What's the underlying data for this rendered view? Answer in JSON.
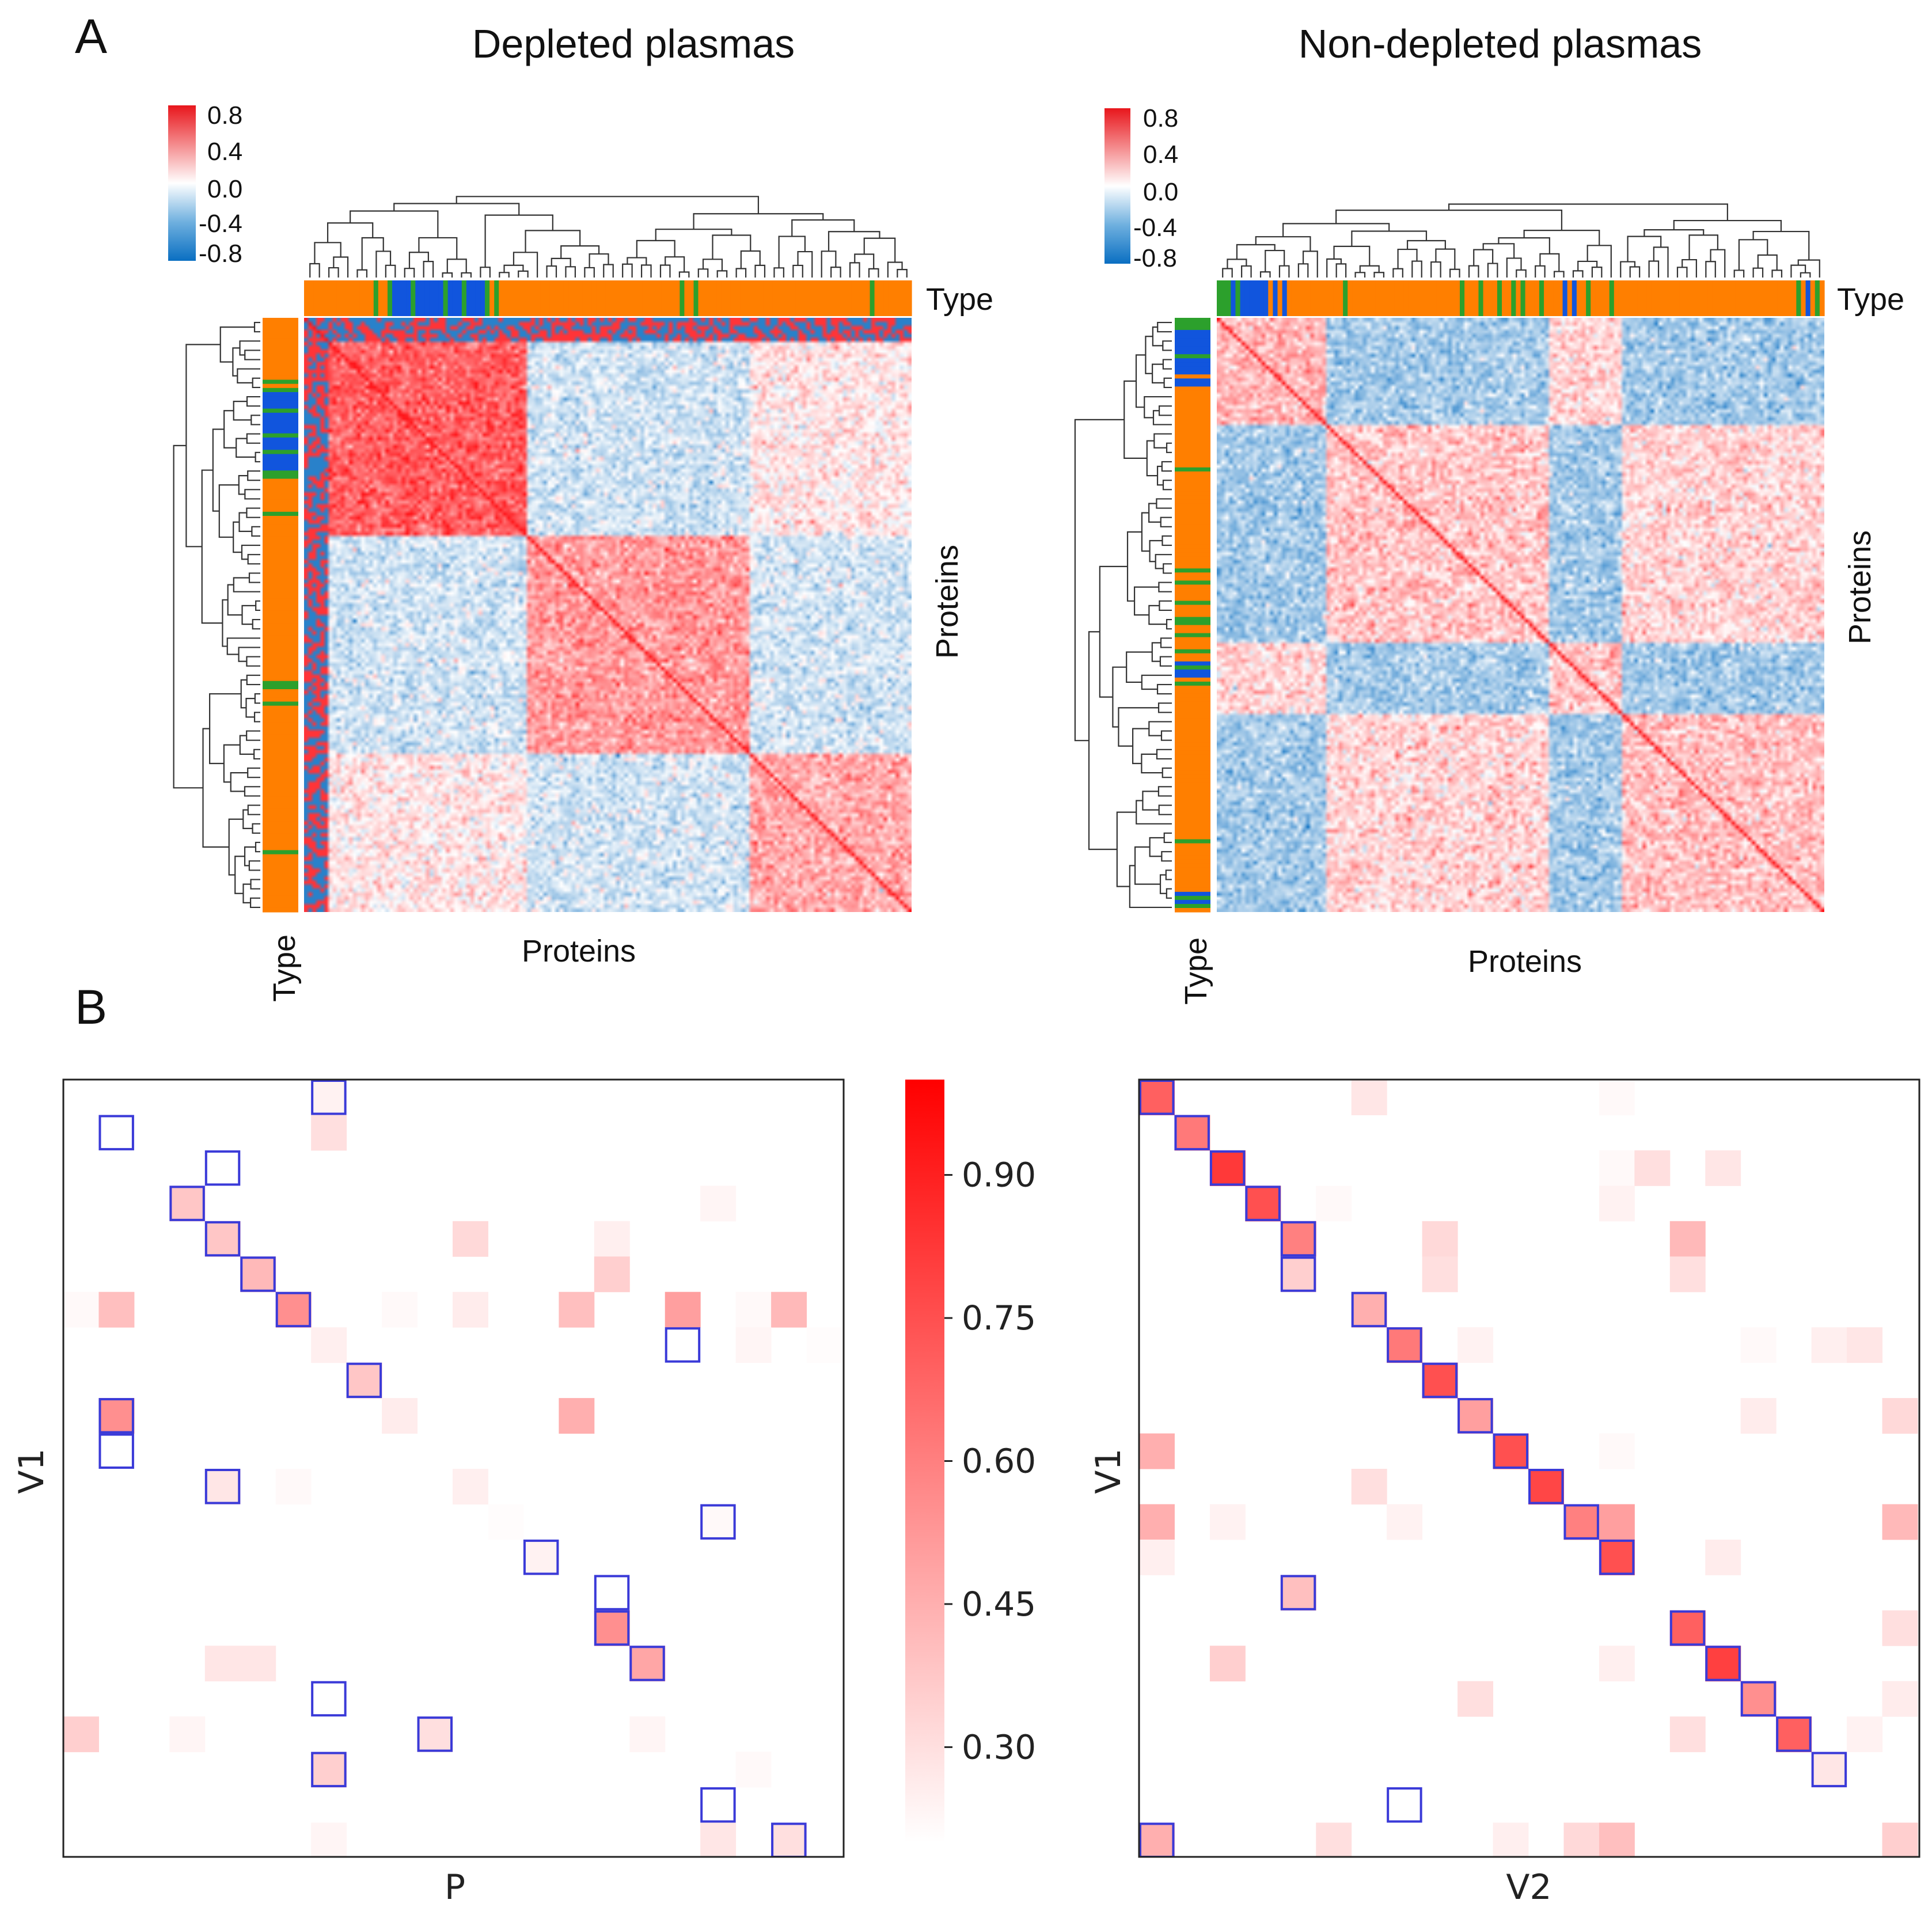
{
  "chart_data": [
    {
      "panel": "A",
      "type": "heatmap",
      "title": "Depleted plasmas",
      "xlabel": "Proteins",
      "ylabel": "Proteins",
      "annotation_label": "Type",
      "colorbar": {
        "min": -0.8,
        "max": 0.8,
        "ticks": [
          "0.8",
          "0.4",
          "0.0",
          "-0.4",
          "-0.8"
        ],
        "colors": [
          "#0a6fc2",
          "#ffffff",
          "#e8161c"
        ]
      },
      "type_colors": {
        "orange": "#ff7f00",
        "green": "#2ca02c",
        "blue": "#1155dd"
      },
      "n_proteins": 150,
      "clusters": [
        {
          "start": 0,
          "end": 55,
          "internal_corr": 0.55
        },
        {
          "start": 55,
          "end": 110,
          "internal_corr": 0.35
        },
        {
          "start": 110,
          "end": 150,
          "internal_corr": 0.3
        }
      ],
      "top_type_blocks": [
        {
          "type": "orange",
          "count": 15
        },
        {
          "type": "green",
          "count": 1
        },
        {
          "type": "orange",
          "count": 2
        },
        {
          "type": "green",
          "count": 1
        },
        {
          "type": "blue",
          "count": 4
        },
        {
          "type": "green",
          "count": 1
        },
        {
          "type": "blue",
          "count": 6
        },
        {
          "type": "green",
          "count": 1
        },
        {
          "type": "blue",
          "count": 3
        },
        {
          "type": "green",
          "count": 1
        },
        {
          "type": "blue",
          "count": 4
        },
        {
          "type": "green",
          "count": 1
        },
        {
          "type": "orange",
          "count": 1
        },
        {
          "type": "green",
          "count": 1
        },
        {
          "type": "orange",
          "count": 39
        },
        {
          "type": "green",
          "count": 1
        },
        {
          "type": "orange",
          "count": 2
        },
        {
          "type": "green",
          "count": 1
        },
        {
          "type": "orange",
          "count": 37
        },
        {
          "type": "green",
          "count": 1
        },
        {
          "type": "orange",
          "count": 8
        }
      ],
      "left_type_blocks": [
        {
          "type": "orange",
          "count": 15
        },
        {
          "type": "green",
          "count": 1
        },
        {
          "type": "orange",
          "count": 1
        },
        {
          "type": "green",
          "count": 1
        },
        {
          "type": "blue",
          "count": 4
        },
        {
          "type": "green",
          "count": 1
        },
        {
          "type": "blue",
          "count": 5
        },
        {
          "type": "green",
          "count": 1
        },
        {
          "type": "blue",
          "count": 3
        },
        {
          "type": "green",
          "count": 1
        },
        {
          "type": "blue",
          "count": 4
        },
        {
          "type": "green",
          "count": 2
        },
        {
          "type": "orange",
          "count": 8
        },
        {
          "type": "green",
          "count": 1
        },
        {
          "type": "orange",
          "count": 40
        },
        {
          "type": "green",
          "count": 2
        },
        {
          "type": "orange",
          "count": 3
        },
        {
          "type": "green",
          "count": 1
        },
        {
          "type": "orange",
          "count": 35
        },
        {
          "type": "green",
          "count": 1
        },
        {
          "type": "orange",
          "count": 14
        }
      ]
    },
    {
      "panel": "A",
      "type": "heatmap",
      "title": "Non-depleted plasmas",
      "xlabel": "Proteins",
      "ylabel": "Proteins",
      "annotation_label": "Type",
      "colorbar": {
        "min": -0.8,
        "max": 0.8,
        "ticks": [
          "0.8",
          "0.4",
          "0.0",
          "-0.4",
          "-0.8"
        ],
        "colors": [
          "#0a6fc2",
          "#ffffff",
          "#e8161c"
        ]
      },
      "type_colors": {
        "orange": "#ff7f00",
        "green": "#2ca02c",
        "blue": "#1155dd"
      },
      "n_proteins": 150,
      "clusters": [
        {
          "start": 0,
          "end": 27,
          "internal_corr": 0.25
        },
        {
          "start": 27,
          "end": 82,
          "internal_corr": 0.2
        },
        {
          "start": 82,
          "end": 100,
          "internal_corr": 0.2
        },
        {
          "start": 100,
          "end": 150,
          "internal_corr": 0.22
        }
      ],
      "top_type_blocks": [
        {
          "type": "green",
          "count": 3
        },
        {
          "type": "blue",
          "count": 1
        },
        {
          "type": "green",
          "count": 1
        },
        {
          "type": "blue",
          "count": 6
        },
        {
          "type": "orange",
          "count": 1
        },
        {
          "type": "blue",
          "count": 1
        },
        {
          "type": "orange",
          "count": 1
        },
        {
          "type": "blue",
          "count": 1
        },
        {
          "type": "orange",
          "count": 12
        },
        {
          "type": "green",
          "count": 1
        },
        {
          "type": "orange",
          "count": 24
        },
        {
          "type": "green",
          "count": 1
        },
        {
          "type": "orange",
          "count": 3
        },
        {
          "type": "green",
          "count": 1
        },
        {
          "type": "orange",
          "count": 3
        },
        {
          "type": "green",
          "count": 1
        },
        {
          "type": "orange",
          "count": 2
        },
        {
          "type": "green",
          "count": 1
        },
        {
          "type": "orange",
          "count": 1
        },
        {
          "type": "green",
          "count": 1
        },
        {
          "type": "orange",
          "count": 3
        },
        {
          "type": "green",
          "count": 1
        },
        {
          "type": "orange",
          "count": 4
        },
        {
          "type": "blue",
          "count": 1
        },
        {
          "type": "orange",
          "count": 1
        },
        {
          "type": "blue",
          "count": 1
        },
        {
          "type": "orange",
          "count": 2
        },
        {
          "type": "green",
          "count": 1
        },
        {
          "type": "orange",
          "count": 4
        },
        {
          "type": "green",
          "count": 1
        },
        {
          "type": "orange",
          "count": 39
        },
        {
          "type": "green",
          "count": 1
        },
        {
          "type": "orange",
          "count": 1
        },
        {
          "type": "blue",
          "count": 1
        },
        {
          "type": "orange",
          "count": 1
        },
        {
          "type": "green",
          "count": 1
        },
        {
          "type": "orange",
          "count": 1
        }
      ],
      "left_type_blocks": [
        {
          "type": "green",
          "count": 3
        },
        {
          "type": "blue",
          "count": 6
        },
        {
          "type": "green",
          "count": 1
        },
        {
          "type": "blue",
          "count": 4
        },
        {
          "type": "orange",
          "count": 1
        },
        {
          "type": "blue",
          "count": 2
        },
        {
          "type": "orange",
          "count": 20
        },
        {
          "type": "green",
          "count": 1
        },
        {
          "type": "orange",
          "count": 24
        },
        {
          "type": "green",
          "count": 1
        },
        {
          "type": "orange",
          "count": 2
        },
        {
          "type": "green",
          "count": 1
        },
        {
          "type": "orange",
          "count": 4
        },
        {
          "type": "green",
          "count": 1
        },
        {
          "type": "orange",
          "count": 3
        },
        {
          "type": "green",
          "count": 2
        },
        {
          "type": "orange",
          "count": 2
        },
        {
          "type": "green",
          "count": 1
        },
        {
          "type": "orange",
          "count": 3
        },
        {
          "type": "green",
          "count": 1
        },
        {
          "type": "orange",
          "count": 2
        },
        {
          "type": "blue",
          "count": 1
        },
        {
          "type": "green",
          "count": 1
        },
        {
          "type": "blue",
          "count": 2
        },
        {
          "type": "orange",
          "count": 1
        },
        {
          "type": "green",
          "count": 1
        },
        {
          "type": "orange",
          "count": 38
        },
        {
          "type": "green",
          "count": 1
        },
        {
          "type": "orange",
          "count": 12
        },
        {
          "type": "blue",
          "count": 1
        },
        {
          "type": "green",
          "count": 1
        },
        {
          "type": "blue",
          "count": 1
        },
        {
          "type": "green",
          "count": 1
        },
        {
          "type": "orange",
          "count": 1
        }
      ]
    },
    {
      "panel": "B",
      "type": "heatmap",
      "title": "",
      "xlabel": "P",
      "ylabel": "V1",
      "grid_size": 22,
      "cells": [
        [
          0,
          7,
          0.24
        ],
        [
          1,
          7,
          0.3
        ],
        [
          3,
          3,
          0.38
        ],
        [
          3,
          18,
          0.23
        ],
        [
          4,
          4,
          0.38
        ],
        [
          4,
          11,
          0.32
        ],
        [
          4,
          15,
          0.25
        ],
        [
          5,
          5,
          0.42
        ],
        [
          5,
          15,
          0.35
        ],
        [
          6,
          6,
          0.55
        ],
        [
          6,
          0,
          0.22
        ],
        [
          6,
          1,
          0.4
        ],
        [
          6,
          9,
          0.22
        ],
        [
          6,
          11,
          0.26
        ],
        [
          6,
          14,
          0.4
        ],
        [
          6,
          17,
          0.5
        ],
        [
          6,
          19,
          0.22
        ],
        [
          6,
          20,
          0.42
        ],
        [
          7,
          7,
          0.25
        ],
        [
          7,
          19,
          0.23
        ],
        [
          7,
          21,
          0.21
        ],
        [
          8,
          8,
          0.38
        ],
        [
          9,
          1,
          0.55
        ],
        [
          9,
          9,
          0.26
        ],
        [
          9,
          14,
          0.45
        ],
        [
          11,
          4,
          0.28
        ],
        [
          11,
          6,
          0.22
        ],
        [
          11,
          11,
          0.25
        ],
        [
          12,
          12,
          0.21
        ],
        [
          12,
          18,
          0.22
        ],
        [
          13,
          13,
          0.24
        ],
        [
          15,
          15,
          0.55
        ],
        [
          16,
          16,
          0.48
        ],
        [
          16,
          4,
          0.28
        ],
        [
          16,
          5,
          0.28
        ],
        [
          18,
          0,
          0.35
        ],
        [
          18,
          3,
          0.23
        ],
        [
          18,
          10,
          0.3
        ],
        [
          18,
          16,
          0.23
        ],
        [
          19,
          7,
          0.35
        ],
        [
          19,
          19,
          0.22
        ],
        [
          21,
          7,
          0.23
        ],
        [
          21,
          18,
          0.28
        ],
        [
          21,
          20,
          0.3
        ]
      ],
      "boxes": [
        [
          0,
          7
        ],
        [
          1,
          1
        ],
        [
          2,
          4
        ],
        [
          3,
          3
        ],
        [
          4,
          4
        ],
        [
          5,
          5
        ],
        [
          6,
          6
        ],
        [
          7,
          17
        ],
        [
          8,
          8
        ],
        [
          9,
          1
        ],
        [
          10,
          1
        ],
        [
          11,
          4
        ],
        [
          12,
          18
        ],
        [
          13,
          13
        ],
        [
          14,
          15
        ],
        [
          15,
          15
        ],
        [
          16,
          16
        ],
        [
          17,
          7
        ],
        [
          18,
          10
        ],
        [
          19,
          7
        ],
        [
          20,
          18
        ],
        [
          21,
          20
        ]
      ]
    },
    {
      "panel": "B",
      "type": "heatmap",
      "title": "",
      "xlabel": "V2",
      "ylabel": "V1",
      "grid_size": 22,
      "cells": [
        [
          0,
          0,
          0.7
        ],
        [
          0,
          6,
          0.28
        ],
        [
          0,
          13,
          0.22
        ],
        [
          1,
          1,
          0.62
        ],
        [
          2,
          2,
          0.82
        ],
        [
          2,
          13,
          0.22
        ],
        [
          2,
          14,
          0.3
        ],
        [
          2,
          16,
          0.28
        ],
        [
          3,
          3,
          0.75
        ],
        [
          3,
          5,
          0.22
        ],
        [
          3,
          13,
          0.24
        ],
        [
          4,
          4,
          0.6
        ],
        [
          4,
          8,
          0.32
        ],
        [
          4,
          15,
          0.42
        ],
        [
          5,
          4,
          0.35
        ],
        [
          5,
          8,
          0.3
        ],
        [
          5,
          15,
          0.3
        ],
        [
          6,
          6,
          0.45
        ],
        [
          7,
          7,
          0.62
        ],
        [
          7,
          9,
          0.24
        ],
        [
          7,
          17,
          0.22
        ],
        [
          7,
          19,
          0.25
        ],
        [
          7,
          20,
          0.28
        ],
        [
          8,
          8,
          0.75
        ],
        [
          9,
          9,
          0.5
        ],
        [
          9,
          17,
          0.26
        ],
        [
          9,
          21,
          0.32
        ],
        [
          10,
          10,
          0.75
        ],
        [
          10,
          0,
          0.45
        ],
        [
          10,
          13,
          0.22
        ],
        [
          11,
          11,
          0.78
        ],
        [
          11,
          6,
          0.3
        ],
        [
          12,
          12,
          0.6
        ],
        [
          12,
          13,
          0.5
        ],
        [
          12,
          0,
          0.45
        ],
        [
          12,
          2,
          0.24
        ],
        [
          12,
          7,
          0.24
        ],
        [
          12,
          21,
          0.42
        ],
        [
          13,
          13,
          0.75
        ],
        [
          13,
          0,
          0.25
        ],
        [
          13,
          16,
          0.26
        ],
        [
          14,
          4,
          0.4
        ],
        [
          15,
          15,
          0.7
        ],
        [
          15,
          21,
          0.3
        ],
        [
          16,
          16,
          0.8
        ],
        [
          16,
          2,
          0.35
        ],
        [
          16,
          13,
          0.25
        ],
        [
          17,
          17,
          0.55
        ],
        [
          17,
          9,
          0.3
        ],
        [
          17,
          21,
          0.26
        ],
        [
          18,
          18,
          0.7
        ],
        [
          18,
          15,
          0.3
        ],
        [
          18,
          20,
          0.24
        ],
        [
          19,
          19,
          0.28
        ],
        [
          21,
          0,
          0.45
        ],
        [
          21,
          5,
          0.3
        ],
        [
          21,
          10,
          0.25
        ],
        [
          21,
          12,
          0.32
        ],
        [
          21,
          13,
          0.4
        ],
        [
          21,
          21,
          0.35
        ]
      ],
      "boxes": [
        [
          0,
          0
        ],
        [
          1,
          1
        ],
        [
          2,
          2
        ],
        [
          3,
          3
        ],
        [
          4,
          4
        ],
        [
          5,
          4
        ],
        [
          6,
          6
        ],
        [
          7,
          7
        ],
        [
          8,
          8
        ],
        [
          9,
          9
        ],
        [
          10,
          10
        ],
        [
          11,
          11
        ],
        [
          12,
          12
        ],
        [
          13,
          13
        ],
        [
          14,
          4
        ],
        [
          15,
          15
        ],
        [
          16,
          16
        ],
        [
          17,
          17
        ],
        [
          18,
          18
        ],
        [
          19,
          19
        ],
        [
          20,
          7
        ],
        [
          21,
          0
        ]
      ]
    }
  ],
  "panel_labels": {
    "a": "A",
    "b": "B"
  },
  "colorbar_B": {
    "ticks": [
      "0.90",
      "0.75",
      "0.60",
      "0.45",
      "0.30"
    ],
    "tick_values": [
      0.9,
      0.75,
      0.6,
      0.45,
      0.3
    ],
    "min": 0.2,
    "max": 1.0,
    "colors": [
      "#ffffff",
      "#ff0000"
    ]
  }
}
